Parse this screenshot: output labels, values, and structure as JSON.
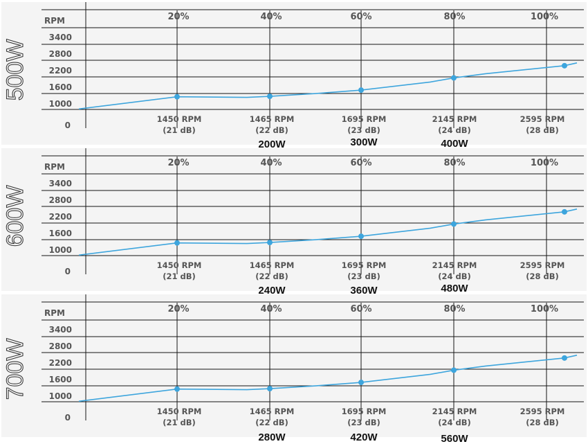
{
  "chart_data": [
    {
      "type": "line",
      "title": "500W",
      "ylabel": "RPM",
      "y_ticks": [
        "3400",
        "2800",
        "2200",
        "1600",
        "1000",
        "0"
      ],
      "x_ticks": [
        "20%",
        "40%",
        "60%",
        "80%",
        "100%"
      ],
      "point_labels": [
        [
          "1450 RPM",
          "(21 dB)"
        ],
        [
          "1465 RPM",
          "(22 dB)"
        ],
        [
          "1695 RPM",
          "(23 dB)"
        ],
        [
          "2145 RPM",
          "(24 dB)"
        ],
        [
          "2595 RPM",
          "(28 dB)"
        ]
      ],
      "watt_labels": [
        "200W",
        "300W",
        "400W"
      ],
      "series": [
        {
          "x": [
            20,
            40,
            60,
            80,
            100
          ],
          "values": [
            1450,
            1465,
            1695,
            2145,
            2595
          ]
        }
      ],
      "color": "#3da5dd",
      "grid": true
    },
    {
      "type": "line",
      "title": "600W",
      "ylabel": "RPM",
      "y_ticks": [
        "3400",
        "2800",
        "2200",
        "1600",
        "1000",
        "0"
      ],
      "x_ticks": [
        "20%",
        "40%",
        "60%",
        "80%",
        "100%"
      ],
      "point_labels": [
        [
          "1450 RPM",
          "(21 dB)"
        ],
        [
          "1465 RPM",
          "(22 dB)"
        ],
        [
          "1695 RPM",
          "(23 dB)"
        ],
        [
          "2145 RPM",
          "(24 dB)"
        ],
        [
          "2595 RPM",
          "(28 dB)"
        ]
      ],
      "watt_labels": [
        "240W",
        "360W",
        "480W"
      ],
      "series": [
        {
          "x": [
            20,
            40,
            60,
            80,
            100
          ],
          "values": [
            1450,
            1465,
            1695,
            2145,
            2595
          ]
        }
      ],
      "color": "#3da5dd",
      "grid": true
    },
    {
      "type": "line",
      "title": "700W",
      "ylabel": "RPM",
      "y_ticks": [
        "3400",
        "2800",
        "2200",
        "1600",
        "1000",
        "0"
      ],
      "x_ticks": [
        "20%",
        "40%",
        "60%",
        "80%",
        "100%"
      ],
      "point_labels": [
        [
          "1450 RPM",
          "(21 dB)"
        ],
        [
          "1465 RPM",
          "(22 dB)"
        ],
        [
          "1695 RPM",
          "(23 dB)"
        ],
        [
          "2145 RPM",
          "(24 dB)"
        ],
        [
          "2595 RPM",
          "(28 dB)"
        ]
      ],
      "watt_labels": [
        "280W",
        "420W",
        "560W"
      ],
      "series": [
        {
          "x": [
            20,
            40,
            60,
            80,
            100
          ],
          "values": [
            1450,
            1465,
            1695,
            2145,
            2595
          ]
        }
      ],
      "color": "#3da5dd",
      "grid": true
    }
  ]
}
